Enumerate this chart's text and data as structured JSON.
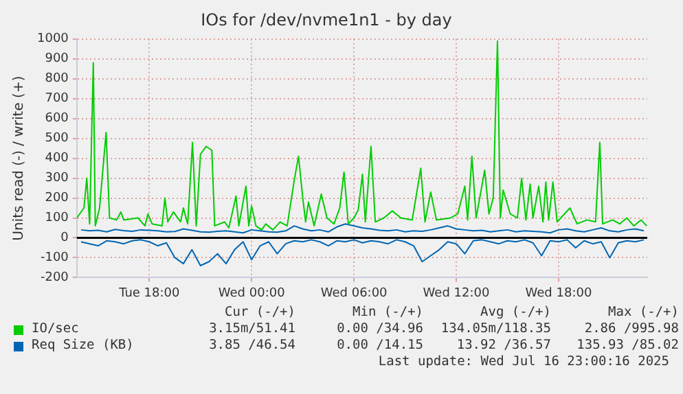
{
  "chart_data": {
    "type": "line",
    "title": "IOs for /dev/nvme1n1 - by day",
    "ylabel": "Units read (-) / write (+)",
    "xlim": [
      "2025-07-15T13:45",
      "2025-07-16T23:12"
    ],
    "xticks": [
      {
        "value": "2025-07-15T18:00",
        "label": "Tue 18:00"
      },
      {
        "value": "2025-07-16T00:00",
        "label": "Wed 00:00"
      },
      {
        "value": "2025-07-16T06:00",
        "label": "Wed 06:00"
      },
      {
        "value": "2025-07-16T12:00",
        "label": "Wed 12:00"
      },
      {
        "value": "2025-07-16T18:00",
        "label": "Wed 18:00"
      }
    ],
    "ylim": [
      -200,
      1000
    ],
    "yticks": [
      -200,
      -100,
      0,
      100,
      200,
      300,
      400,
      500,
      600,
      700,
      800,
      900,
      1000
    ],
    "grid": true,
    "legend": "bottom left",
    "marker": "none",
    "line_style": "solid",
    "ref_lines": [
      {
        "axis": "y",
        "value": 0,
        "color": "#000000"
      }
    ],
    "series": [
      {
        "name": "IO/sec",
        "color": "#00cc00",
        "x": [
          "2025-07-15T13:45",
          "2025-07-15T14:10",
          "2025-07-15T14:20",
          "2025-07-15T14:30",
          "2025-07-15T14:43",
          "2025-07-15T14:50",
          "2025-07-15T15:05",
          "2025-07-15T15:28",
          "2025-07-15T15:40",
          "2025-07-15T16:05",
          "2025-07-15T16:20",
          "2025-07-15T16:30",
          "2025-07-15T17:20",
          "2025-07-15T17:45",
          "2025-07-15T17:55",
          "2025-07-15T18:10",
          "2025-07-15T18:45",
          "2025-07-15T18:55",
          "2025-07-15T19:05",
          "2025-07-15T19:25",
          "2025-07-15T19:50",
          "2025-07-15T20:00",
          "2025-07-15T20:15",
          "2025-07-15T20:32",
          "2025-07-15T20:45",
          "2025-07-15T21:00",
          "2025-07-15T21:20",
          "2025-07-15T21:40",
          "2025-07-15T21:50",
          "2025-07-15T22:25",
          "2025-07-15T22:40",
          "2025-07-15T23:05",
          "2025-07-15T23:15",
          "2025-07-15T23:40",
          "2025-07-15T23:50",
          "2025-07-16T00:00",
          "2025-07-16T00:15",
          "2025-07-16T00:35",
          "2025-07-16T00:50",
          "2025-07-16T01:15",
          "2025-07-16T01:40",
          "2025-07-16T02:05",
          "2025-07-16T02:30",
          "2025-07-16T02:45",
          "2025-07-16T03:00",
          "2025-07-16T03:10",
          "2025-07-16T03:20",
          "2025-07-16T03:40",
          "2025-07-16T04:05",
          "2025-07-16T04:25",
          "2025-07-16T04:50",
          "2025-07-16T05:10",
          "2025-07-16T05:25",
          "2025-07-16T05:40",
          "2025-07-16T06:00",
          "2025-07-16T06:15",
          "2025-07-16T06:30",
          "2025-07-16T06:40",
          "2025-07-16T07:00",
          "2025-07-16T07:15",
          "2025-07-16T07:45",
          "2025-07-16T08:15",
          "2025-07-16T08:45",
          "2025-07-16T09:25",
          "2025-07-16T09:55",
          "2025-07-16T10:10",
          "2025-07-16T10:30",
          "2025-07-16T10:50",
          "2025-07-16T11:40",
          "2025-07-16T12:05",
          "2025-07-16T12:30",
          "2025-07-16T12:40",
          "2025-07-16T12:55",
          "2025-07-16T13:10",
          "2025-07-16T13:40",
          "2025-07-16T13:55",
          "2025-07-16T14:10",
          "2025-07-16T14:25",
          "2025-07-16T14:35",
          "2025-07-16T14:45",
          "2025-07-16T15:10",
          "2025-07-16T15:35",
          "2025-07-16T15:50",
          "2025-07-16T16:05",
          "2025-07-16T16:20",
          "2025-07-16T16:30",
          "2025-07-16T16:50",
          "2025-07-16T17:05",
          "2025-07-16T17:15",
          "2025-07-16T17:25",
          "2025-07-16T17:40",
          "2025-07-16T17:55",
          "2025-07-16T18:40",
          "2025-07-16T19:05",
          "2025-07-16T19:40",
          "2025-07-16T20:10",
          "2025-07-16T20:25",
          "2025-07-16T20:35",
          "2025-07-16T21:10",
          "2025-07-16T21:35",
          "2025-07-16T22:00",
          "2025-07-16T22:25",
          "2025-07-16T22:50",
          "2025-07-16T23:10"
        ],
        "values": [
          100,
          150,
          300,
          70,
          880,
          60,
          150,
          530,
          100,
          90,
          130,
          90,
          100,
          60,
          120,
          70,
          60,
          200,
          80,
          130,
          80,
          150,
          70,
          480,
          60,
          420,
          460,
          440,
          60,
          80,
          50,
          210,
          60,
          260,
          60,
          160,
          60,
          40,
          70,
          40,
          80,
          60,
          290,
          410,
          200,
          80,
          180,
          60,
          220,
          100,
          70,
          150,
          330,
          70,
          100,
          140,
          320,
          80,
          460,
          80,
          100,
          135,
          100,
          90,
          350,
          80,
          230,
          90,
          100,
          120,
          260,
          90,
          410,
          100,
          340,
          120,
          200,
          990,
          100,
          240,
          120,
          100,
          300,
          90,
          270,
          100,
          260,
          80,
          280,
          90,
          280,
          80,
          150,
          70,
          90,
          80,
          480,
          70,
          90,
          70,
          100,
          60,
          90,
          60
        ]
      },
      {
        "name": "Req Size (KB)",
        "color": "#0066b3",
        "x": [
          "2025-07-15T14:00",
          "2025-07-15T14:30",
          "2025-07-15T15:00",
          "2025-07-15T15:30",
          "2025-07-15T16:00",
          "2025-07-15T16:30",
          "2025-07-15T17:00",
          "2025-07-15T17:30",
          "2025-07-15T18:00",
          "2025-07-15T18:30",
          "2025-07-15T19:00",
          "2025-07-15T19:30",
          "2025-07-15T20:00",
          "2025-07-15T20:30",
          "2025-07-15T21:00",
          "2025-07-15T21:30",
          "2025-07-15T22:00",
          "2025-07-15T22:30",
          "2025-07-15T23:00",
          "2025-07-15T23:30",
          "2025-07-16T00:00",
          "2025-07-16T00:30",
          "2025-07-16T01:00",
          "2025-07-16T01:30",
          "2025-07-16T02:00",
          "2025-07-16T02:30",
          "2025-07-16T03:00",
          "2025-07-16T03:30",
          "2025-07-16T04:00",
          "2025-07-16T04:30",
          "2025-07-16T05:00",
          "2025-07-16T05:30",
          "2025-07-16T06:00",
          "2025-07-16T06:30",
          "2025-07-16T07:00",
          "2025-07-16T07:30",
          "2025-07-16T08:00",
          "2025-07-16T08:30",
          "2025-07-16T09:00",
          "2025-07-16T09:30",
          "2025-07-16T10:00",
          "2025-07-16T10:30",
          "2025-07-16T11:00",
          "2025-07-16T11:30",
          "2025-07-16T12:00",
          "2025-07-16T12:30",
          "2025-07-16T13:00",
          "2025-07-16T13:30",
          "2025-07-16T14:00",
          "2025-07-16T14:30",
          "2025-07-16T15:00",
          "2025-07-16T15:30",
          "2025-07-16T16:00",
          "2025-07-16T16:30",
          "2025-07-16T17:00",
          "2025-07-16T17:30",
          "2025-07-16T18:00",
          "2025-07-16T18:30",
          "2025-07-16T19:00",
          "2025-07-16T19:30",
          "2025-07-16T20:00",
          "2025-07-16T20:30",
          "2025-07-16T21:00",
          "2025-07-16T21:30",
          "2025-07-16T22:00",
          "2025-07-16T22:30",
          "2025-07-16T23:00"
        ],
        "values": [
          40,
          35,
          38,
          30,
          42,
          36,
          33,
          40,
          38,
          35,
          30,
          32,
          45,
          38,
          30,
          28,
          33,
          35,
          30,
          25,
          40,
          35,
          30,
          28,
          35,
          60,
          45,
          35,
          40,
          30,
          55,
          70,
          60,
          50,
          45,
          38,
          35,
          40,
          30,
          35,
          33,
          40,
          50,
          60,
          45,
          40,
          35,
          38,
          30,
          35,
          40,
          30,
          35,
          33,
          30,
          25,
          40,
          45,
          35,
          30,
          40,
          50,
          35,
          30,
          40,
          45,
          35
        ]
      },
      {
        "color": "#0066b3",
        "x": [
          "2025-07-15T14:00",
          "2025-07-15T14:30",
          "2025-07-15T15:00",
          "2025-07-15T15:30",
          "2025-07-15T16:00",
          "2025-07-15T16:30",
          "2025-07-15T17:00",
          "2025-07-15T17:30",
          "2025-07-15T18:00",
          "2025-07-15T18:30",
          "2025-07-15T19:00",
          "2025-07-15T19:30",
          "2025-07-15T20:00",
          "2025-07-15T20:30",
          "2025-07-15T21:00",
          "2025-07-15T21:30",
          "2025-07-15T22:00",
          "2025-07-15T22:30",
          "2025-07-15T23:00",
          "2025-07-15T23:30",
          "2025-07-16T00:00",
          "2025-07-16T00:30",
          "2025-07-16T01:00",
          "2025-07-16T01:30",
          "2025-07-16T02:00",
          "2025-07-16T02:30",
          "2025-07-16T03:00",
          "2025-07-16T03:30",
          "2025-07-16T04:00",
          "2025-07-16T04:30",
          "2025-07-16T05:00",
          "2025-07-16T05:30",
          "2025-07-16T06:00",
          "2025-07-16T06:30",
          "2025-07-16T07:00",
          "2025-07-16T07:30",
          "2025-07-16T08:00",
          "2025-07-16T08:30",
          "2025-07-16T09:00",
          "2025-07-16T09:30",
          "2025-07-16T10:00",
          "2025-07-16T10:30",
          "2025-07-16T11:00",
          "2025-07-16T11:30",
          "2025-07-16T12:00",
          "2025-07-16T12:30",
          "2025-07-16T13:00",
          "2025-07-16T13:30",
          "2025-07-16T14:00",
          "2025-07-16T14:30",
          "2025-07-16T15:00",
          "2025-07-16T15:30",
          "2025-07-16T16:00",
          "2025-07-16T16:30",
          "2025-07-16T17:00",
          "2025-07-16T17:30",
          "2025-07-16T18:00",
          "2025-07-16T18:30",
          "2025-07-16T19:00",
          "2025-07-16T19:30",
          "2025-07-16T20:00",
          "2025-07-16T20:30",
          "2025-07-16T21:00",
          "2025-07-16T21:30",
          "2025-07-16T22:00",
          "2025-07-16T22:30",
          "2025-07-16T23:00"
        ],
        "values": [
          -20,
          -30,
          -40,
          -15,
          -20,
          -30,
          -15,
          -10,
          -20,
          -40,
          -25,
          -100,
          -130,
          -60,
          -140,
          -120,
          -80,
          -130,
          -60,
          -20,
          -110,
          -40,
          -20,
          -80,
          -30,
          -15,
          -20,
          -10,
          -20,
          -40,
          -15,
          -20,
          -10,
          -25,
          -15,
          -20,
          -30,
          -10,
          -20,
          -40,
          -120,
          -90,
          -60,
          -20,
          -30,
          -80,
          -15,
          -10,
          -20,
          -30,
          -15,
          -20,
          -10,
          -25,
          -90,
          -15,
          -20,
          -10,
          -50,
          -15,
          -30,
          -20,
          -100,
          -25,
          -15,
          -20,
          -10
        ]
      }
    ],
    "annotations": [
      "Cur (-/+)",
      "Min (-/+)",
      "Avg (-/+)",
      "Max (-/+)",
      "3.15m/51.41",
      "0.00 /34.96",
      "134.05m/118.35",
      "2.86 /995.98",
      "3.85 /46.54",
      "0.00 /14.15",
      "13.92 /36.57",
      "135.93 /85.02",
      "Last update: Wed Jul 16 23:00:16 2025"
    ]
  }
}
